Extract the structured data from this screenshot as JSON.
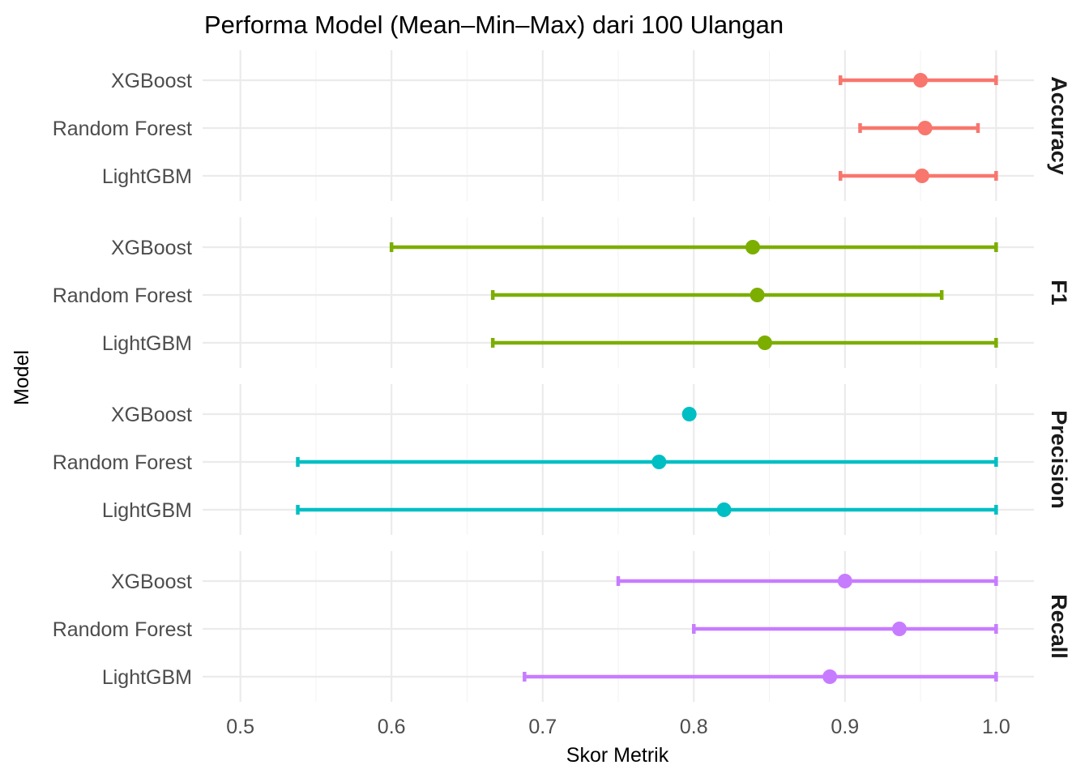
{
  "chart_data": {
    "type": "errorbar",
    "title": "Performa Model (Mean–Min–Max) dari 100 Ulangan",
    "xlabel": "Skor Metrik",
    "ylabel": "Model",
    "xlim": [
      0.475,
      1.025
    ],
    "x_ticks": [
      0.5,
      0.6,
      0.7,
      0.8,
      0.9,
      1.0
    ],
    "x_tick_labels": [
      "0.5",
      "0.6",
      "0.7",
      "0.8",
      "0.9",
      "1.0"
    ],
    "models": [
      "XGBoost",
      "Random Forest",
      "LightGBM"
    ],
    "grid": true,
    "legend": "none",
    "facets": [
      {
        "metric": "Accuracy",
        "color": "#F8766D",
        "points": [
          {
            "model": "XGBoost",
            "mean": 0.95,
            "min": 0.897,
            "max": 1.0
          },
          {
            "model": "Random Forest",
            "mean": 0.953,
            "min": 0.91,
            "max": 0.988
          },
          {
            "model": "LightGBM",
            "mean": 0.951,
            "min": 0.897,
            "max": 1.0
          }
        ]
      },
      {
        "metric": "F1",
        "color": "#7CAE00",
        "points": [
          {
            "model": "XGBoost",
            "mean": 0.839,
            "min": 0.6,
            "max": 1.0
          },
          {
            "model": "Random Forest",
            "mean": 0.842,
            "min": 0.667,
            "max": 0.964
          },
          {
            "model": "LightGBM",
            "mean": 0.847,
            "min": 0.667,
            "max": 1.0
          }
        ]
      },
      {
        "metric": "Precision",
        "color": "#00BFC4",
        "points": [
          {
            "model": "XGBoost",
            "mean": 0.797,
            "min": 0.797,
            "max": 0.797
          },
          {
            "model": "Random Forest",
            "mean": 0.777,
            "min": 0.538,
            "max": 1.0
          },
          {
            "model": "LightGBM",
            "mean": 0.82,
            "min": 0.538,
            "max": 1.0
          }
        ]
      },
      {
        "metric": "Recall",
        "color": "#C77CFF",
        "points": [
          {
            "model": "XGBoost",
            "mean": 0.9,
            "min": 0.75,
            "max": 1.0
          },
          {
            "model": "Random Forest",
            "mean": 0.936,
            "min": 0.8,
            "max": 1.0
          },
          {
            "model": "LightGBM",
            "mean": 0.89,
            "min": 0.688,
            "max": 1.0
          }
        ]
      }
    ]
  }
}
